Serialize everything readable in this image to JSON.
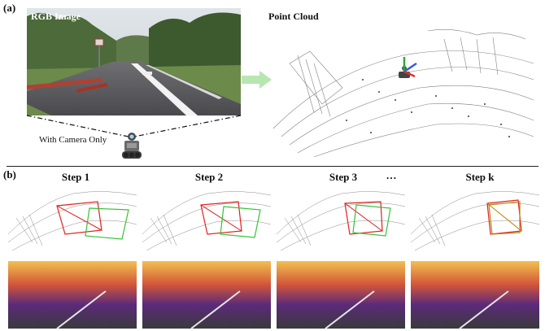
{
  "panel_a": {
    "label": "(a)",
    "rgb_title": "RGB Image",
    "pointcloud_title": "Point Cloud",
    "camera_caption": "With Camera Only"
  },
  "panel_b": {
    "label": "(b)",
    "steps": [
      {
        "title": "Step 1",
        "frustum_colors": [
          "#e02020",
          "#35c235"
        ]
      },
      {
        "title": "Step 2",
        "frustum_colors": [
          "#e02020",
          "#35c235"
        ]
      },
      {
        "title": "Step 3",
        "frustum_colors": [
          "#e02020",
          "#35c235"
        ]
      },
      {
        "title": "Step k",
        "frustum_colors": [
          "#e02020",
          "#b8860b"
        ]
      }
    ],
    "ellipsis": "…"
  },
  "colors": {
    "arrow": "#b8e6b0",
    "depth_hot": "#f2c14e",
    "depth_mid": "#d2553a",
    "depth_cool": "#5a2a7a"
  }
}
